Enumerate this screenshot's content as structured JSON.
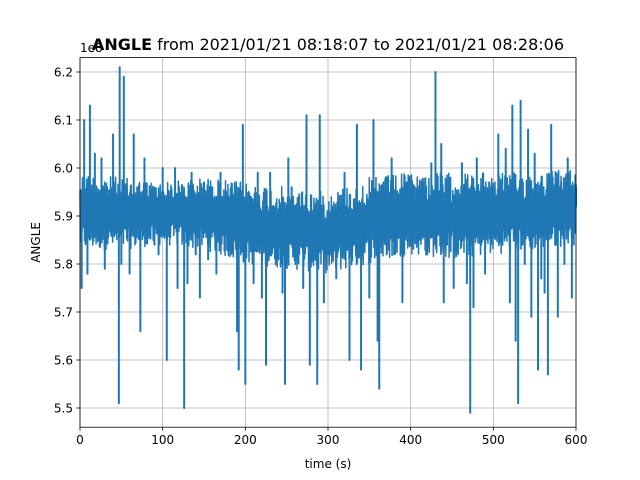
{
  "chart_data": {
    "type": "line",
    "title_bold": "ANGLE",
    "title_rest": " from 2021/01/21 08:18:07 to 2021/01/21 08:28:06",
    "xlabel": "time (s)",
    "ylabel": "ANGLE",
    "offset_label": "1e8",
    "xlim": [
      0,
      600
    ],
    "ylim": [
      5.46,
      6.23
    ],
    "x_ticks": [
      0,
      100,
      200,
      300,
      400,
      500,
      600
    ],
    "x_tick_labels": [
      "0",
      "100",
      "200",
      "300",
      "400",
      "500",
      "600"
    ],
    "y_ticks": [
      5.5,
      5.6,
      5.7,
      5.8,
      5.9,
      6.0,
      6.1,
      6.2
    ],
    "y_tick_labels": [
      "5.5",
      "5.6",
      "5.7",
      "5.8",
      "5.9",
      "6.0",
      "6.1",
      "6.2"
    ],
    "grid": true,
    "line_color": "#1f77b4",
    "band": {
      "x": [
        0,
        50,
        100,
        150,
        200,
        250,
        300,
        350,
        400,
        450,
        500,
        550,
        600
      ],
      "low": [
        5.83,
        5.83,
        5.84,
        5.83,
        5.8,
        5.79,
        5.78,
        5.8,
        5.82,
        5.81,
        5.82,
        5.83,
        5.84
      ],
      "high": [
        5.99,
        5.98,
        5.97,
        5.98,
        5.97,
        5.96,
        5.95,
        5.98,
        5.99,
        5.99,
        5.99,
        5.99,
        6.0
      ]
    },
    "spikes": [
      [
        2,
        5.75
      ],
      [
        5,
        6.1
      ],
      [
        9,
        5.78
      ],
      [
        12,
        6.13
      ],
      [
        18,
        6.03
      ],
      [
        26,
        6.02
      ],
      [
        30,
        5.79
      ],
      [
        34,
        5.87
      ],
      [
        40,
        6.07
      ],
      [
        47,
        5.51
      ],
      [
        48,
        6.21
      ],
      [
        50,
        5.8
      ],
      [
        53,
        6.19
      ],
      [
        56,
        5.88
      ],
      [
        60,
        5.78
      ],
      [
        65,
        6.07
      ],
      [
        70,
        5.92
      ],
      [
        73,
        5.66
      ],
      [
        78,
        6.02
      ],
      [
        90,
        5.84
      ],
      [
        95,
        5.82
      ],
      [
        100,
        6.0
      ],
      [
        105,
        5.6
      ],
      [
        110,
        5.92
      ],
      [
        115,
        6.0
      ],
      [
        118,
        5.75
      ],
      [
        122,
        5.93
      ],
      [
        126,
        5.5
      ],
      [
        130,
        5.76
      ],
      [
        135,
        5.99
      ],
      [
        140,
        5.82
      ],
      [
        145,
        5.73
      ],
      [
        150,
        5.97
      ],
      [
        155,
        5.81
      ],
      [
        160,
        5.96
      ],
      [
        165,
        5.78
      ],
      [
        170,
        5.99
      ],
      [
        178,
        5.83
      ],
      [
        185,
        5.94
      ],
      [
        190,
        5.66
      ],
      [
        192,
        5.58
      ],
      [
        197,
        6.09
      ],
      [
        200,
        5.55
      ],
      [
        206,
        5.93
      ],
      [
        210,
        5.76
      ],
      [
        215,
        5.99
      ],
      [
        220,
        5.73
      ],
      [
        225,
        5.59
      ],
      [
        230,
        5.99
      ],
      [
        235,
        5.84
      ],
      [
        240,
        5.81
      ],
      [
        245,
        5.74
      ],
      [
        248,
        5.55
      ],
      [
        252,
        6.02
      ],
      [
        256,
        5.96
      ],
      [
        260,
        5.82
      ],
      [
        265,
        5.94
      ],
      [
        270,
        5.75
      ],
      [
        274,
        6.11
      ],
      [
        278,
        5.59
      ],
      [
        282,
        5.86
      ],
      [
        287,
        5.55
      ],
      [
        290,
        6.11
      ],
      [
        295,
        5.72
      ],
      [
        300,
        5.82
      ],
      [
        305,
        5.92
      ],
      [
        310,
        5.77
      ],
      [
        316,
        5.9
      ],
      [
        320,
        5.99
      ],
      [
        326,
        5.6
      ],
      [
        330,
        5.89
      ],
      [
        335,
        6.09
      ],
      [
        340,
        5.58
      ],
      [
        345,
        5.86
      ],
      [
        350,
        5.73
      ],
      [
        355,
        6.1
      ],
      [
        360,
        5.64
      ],
      [
        362,
        5.54
      ],
      [
        367,
        5.97
      ],
      [
        371,
        5.82
      ],
      [
        377,
        6.02
      ],
      [
        380,
        5.82
      ],
      [
        385,
        5.9
      ],
      [
        390,
        5.72
      ],
      [
        395,
        5.97
      ],
      [
        400,
        5.84
      ],
      [
        405,
        5.96
      ],
      [
        410,
        5.85
      ],
      [
        415,
        5.96
      ],
      [
        420,
        5.82
      ],
      [
        425,
        6.01
      ],
      [
        430,
        6.2
      ],
      [
        432,
        5.86
      ],
      [
        437,
        6.05
      ],
      [
        440,
        5.72
      ],
      [
        444,
        5.84
      ],
      [
        448,
        5.98
      ],
      [
        452,
        5.75
      ],
      [
        457,
        5.92
      ],
      [
        462,
        6.01
      ],
      [
        468,
        5.76
      ],
      [
        472,
        5.49
      ],
      [
        476,
        5.71
      ],
      [
        480,
        6.02
      ],
      [
        485,
        5.88
      ],
      [
        490,
        5.78
      ],
      [
        495,
        5.97
      ],
      [
        500,
        5.88
      ],
      [
        506,
        6.07
      ],
      [
        511,
        5.84
      ],
      [
        515,
        6.04
      ],
      [
        520,
        5.72
      ],
      [
        523,
        6.13
      ],
      [
        527,
        5.64
      ],
      [
        530,
        5.51
      ],
      [
        533,
        6.14
      ],
      [
        538,
        5.8
      ],
      [
        542,
        6.08
      ],
      [
        546,
        5.69
      ],
      [
        550,
        6.03
      ],
      [
        554,
        5.58
      ],
      [
        558,
        5.77
      ],
      [
        562,
        5.74
      ],
      [
        566,
        5.57
      ],
      [
        570,
        6.09
      ],
      [
        574,
        5.88
      ],
      [
        578,
        5.69
      ],
      [
        582,
        5.97
      ],
      [
        586,
        5.8
      ],
      [
        590,
        6.02
      ],
      [
        595,
        5.73
      ],
      [
        600,
        5.96
      ]
    ]
  }
}
